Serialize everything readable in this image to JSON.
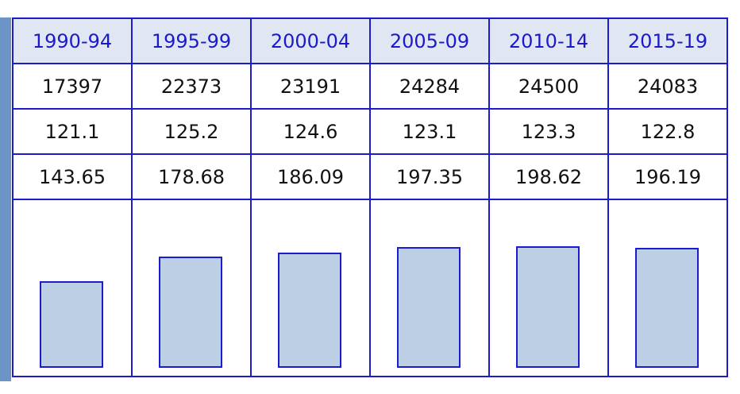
{
  "chart_data": {
    "type": "table",
    "categories": [
      "1990-94",
      "1995-99",
      "2000-04",
      "2005-09",
      "2010-14",
      "2015-19"
    ],
    "rows": [
      [
        "17397",
        "22373",
        "23191",
        "24284",
        "24500",
        "24083"
      ],
      [
        "121.1",
        "125.2",
        "124.6",
        "123.1",
        "123.3",
        "122.8"
      ],
      [
        "143.65",
        "178.68",
        "186.09",
        "197.35",
        "198.62",
        "196.19"
      ]
    ],
    "bar_values": [
      17397,
      22373,
      23191,
      24284,
      24500,
      24083
    ],
    "ylim": [
      0,
      40000
    ]
  },
  "colors": {
    "border": "#1c1ccc",
    "header_background": "#e0e7f3",
    "header_text": "#1a1acc",
    "bar_fill": "#bccfe4",
    "left_bar": "#6c94c7"
  }
}
